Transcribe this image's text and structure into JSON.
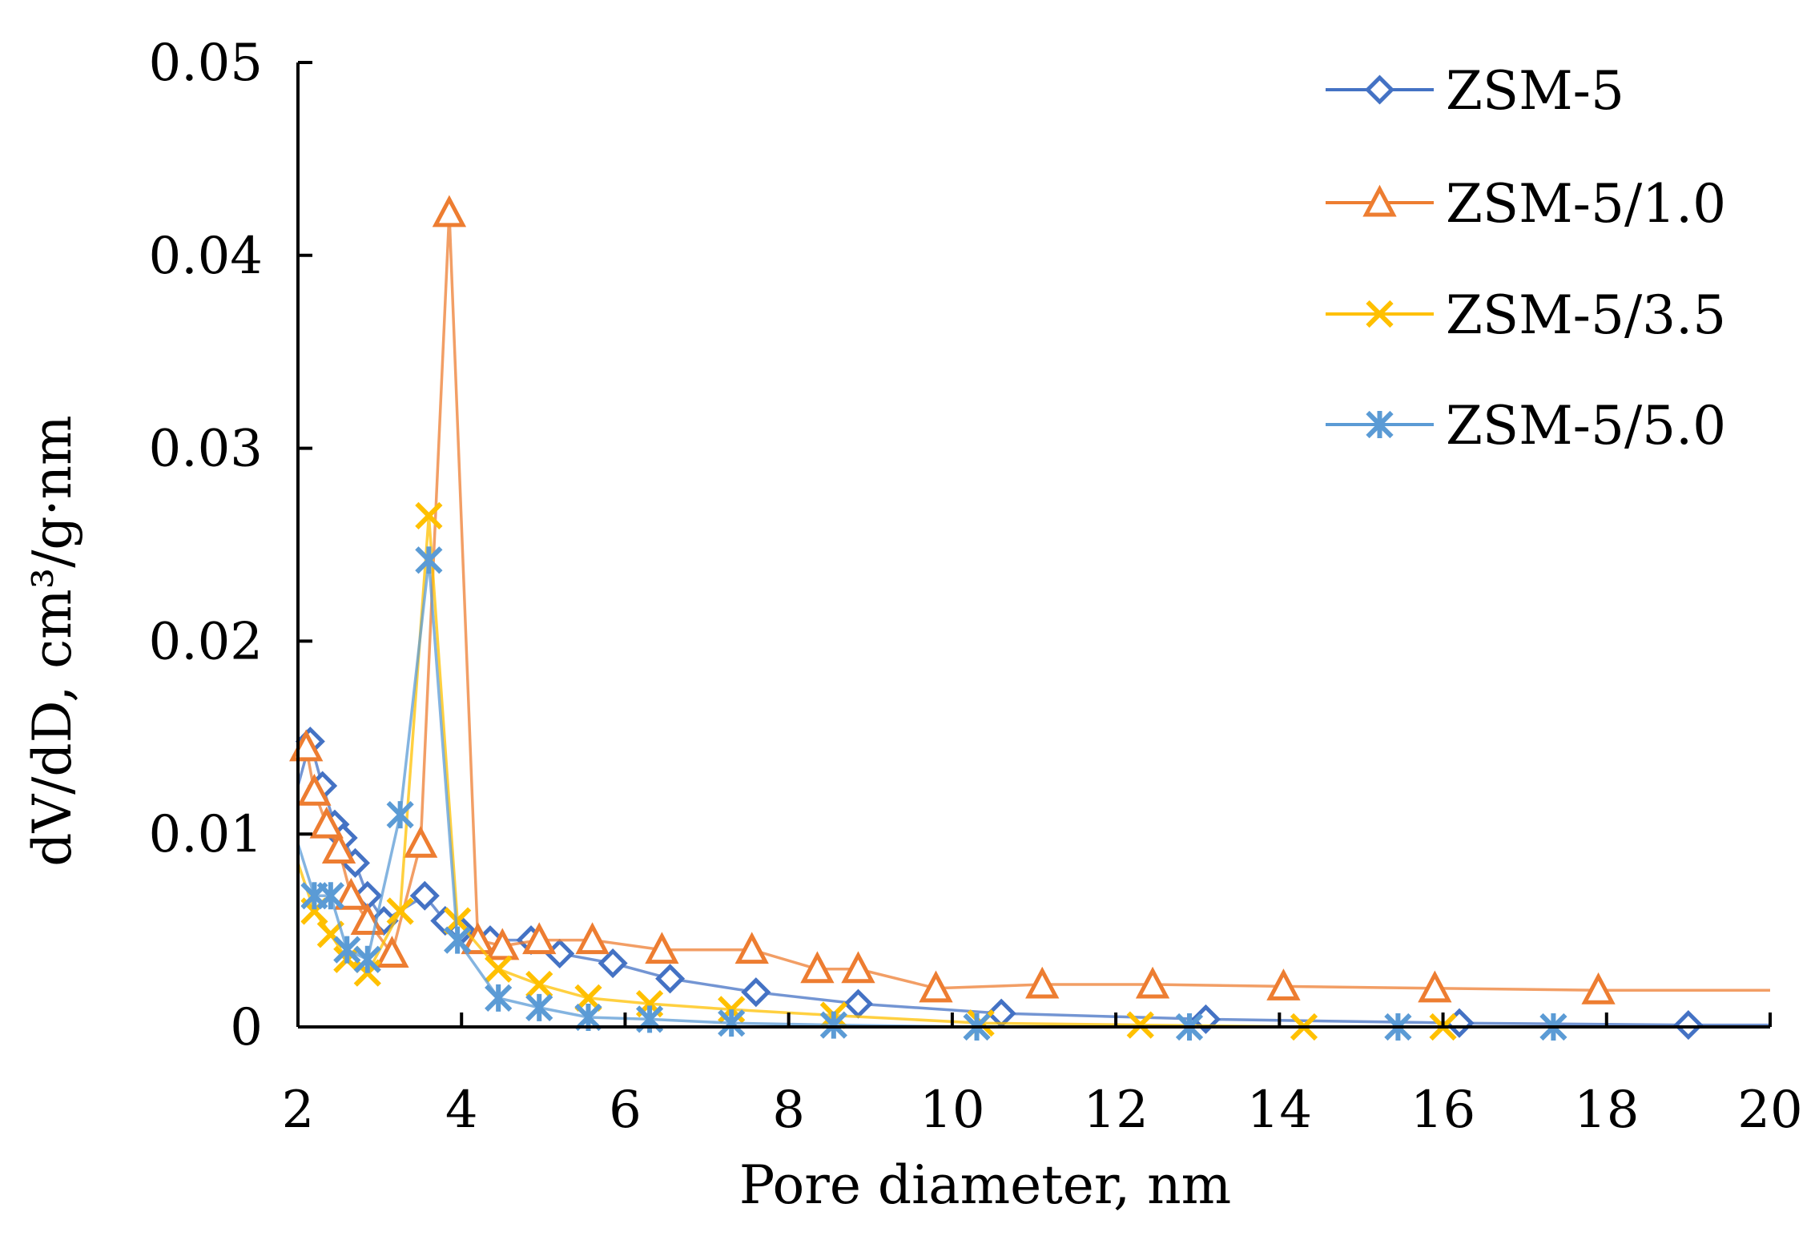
{
  "chart_data": {
    "type": "line",
    "title": "",
    "xlabel": "Pore diameter, nm",
    "ylabel": "dV/dD, cm³/g·nm",
    "xlim": [
      2,
      20
    ],
    "ylim": [
      0,
      0.05
    ],
    "xticks": [
      2,
      4,
      6,
      8,
      10,
      12,
      14,
      16,
      18,
      20
    ],
    "yticks": [
      0,
      0.01,
      0.02,
      0.03,
      0.04,
      0.05
    ],
    "xtick_labels": [
      "2",
      "4",
      "6",
      "8",
      "10",
      "12",
      "14",
      "16",
      "18",
      "20"
    ],
    "ytick_labels": [
      "0",
      "0.01",
      "0.02",
      "0.03",
      "0.04",
      "0.05"
    ],
    "grid": false,
    "legend_position": "top-right",
    "series": [
      {
        "name": "ZSM-5",
        "color": "#4472C4",
        "marker": "diamond",
        "x": [
          2.0,
          2.15,
          2.3,
          2.45,
          2.55,
          2.7,
          2.85,
          3.05,
          3.55,
          3.8,
          4.0,
          4.35,
          4.85,
          5.2,
          5.85,
          6.55,
          7.6,
          8.85,
          10.6,
          13.1,
          16.2,
          19.0,
          20.0
        ],
        "y": [
          0.0125,
          0.0148,
          0.0125,
          0.0105,
          0.0098,
          0.0085,
          0.0068,
          0.0055,
          0.0068,
          0.0055,
          0.005,
          0.0045,
          0.0045,
          0.0038,
          0.0033,
          0.0025,
          0.0018,
          0.0012,
          0.0007,
          0.0004,
          0.0002,
          0.0001,
          0.0001
        ]
      },
      {
        "name": "ZSM-5/1.0",
        "color": "#ED7D31",
        "marker": "triangle",
        "x": [
          2.0,
          2.1,
          2.2,
          2.35,
          2.5,
          2.65,
          2.85,
          3.15,
          3.5,
          3.85,
          4.2,
          4.5,
          4.95,
          5.6,
          6.45,
          7.55,
          8.35,
          8.85,
          9.8,
          11.1,
          12.45,
          14.05,
          15.9,
          17.9,
          20.0
        ],
        "y": [
          0.0142,
          0.0145,
          0.0122,
          0.0105,
          0.0092,
          0.0068,
          0.0055,
          0.0038,
          0.0095,
          0.0422,
          0.0045,
          0.0042,
          0.0045,
          0.0045,
          0.004,
          0.004,
          0.003,
          0.003,
          0.002,
          0.0022,
          0.0022,
          0.0021,
          0.002,
          0.0019,
          0.0019
        ]
      },
      {
        "name": "ZSM-5/3.5",
        "color": "#FFC000",
        "marker": "x",
        "x": [
          2.0,
          2.2,
          2.4,
          2.6,
          2.85,
          3.25,
          3.6,
          3.95,
          4.45,
          4.95,
          5.55,
          6.3,
          7.3,
          8.55,
          10.35,
          12.3,
          14.3,
          16.0,
          20.0
        ],
        "y": [
          0.0085,
          0.006,
          0.0048,
          0.0035,
          0.0028,
          0.006,
          0.0265,
          0.0055,
          0.003,
          0.0022,
          0.0015,
          0.0012,
          0.0009,
          0.0006,
          0.0002,
          0.0001,
          0.0,
          0.0,
          0.0
        ]
      },
      {
        "name": "ZSM-5/5.0",
        "color": "#5B9BD5",
        "marker": "star",
        "x": [
          2.0,
          2.2,
          2.4,
          2.6,
          2.85,
          3.25,
          3.6,
          3.95,
          4.45,
          4.95,
          5.55,
          6.3,
          7.3,
          8.55,
          10.3,
          12.9,
          15.45,
          17.35,
          20.0
        ],
        "y": [
          0.0095,
          0.0068,
          0.0068,
          0.004,
          0.0035,
          0.011,
          0.0242,
          0.0045,
          0.0015,
          0.001,
          0.0005,
          0.0004,
          0.0002,
          0.0001,
          0.0,
          0.0,
          0.0,
          0.0,
          0.0
        ]
      }
    ]
  }
}
